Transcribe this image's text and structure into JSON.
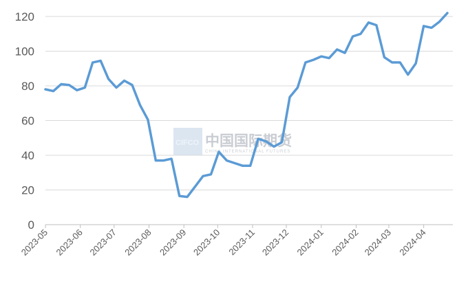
{
  "watermark": {
    "logo": "CIFCO",
    "name": "中国国际期货",
    "tagline": "CHINA INTERNATIONAL FUTURES"
  },
  "chart_data": {
    "type": "line",
    "title": "",
    "xlabel": "",
    "ylabel": "",
    "ylim": [
      0,
      120
    ],
    "yticks": [
      0,
      20,
      40,
      60,
      80,
      100,
      120
    ],
    "grid": "horizontal",
    "line_color": "#5b9bd5",
    "xticks": [
      "2023-05",
      "2023-06",
      "2023-07",
      "2023-08",
      "2023-09",
      "2023-10",
      "2023-11",
      "2023-12",
      "2024-01",
      "2024-02",
      "2024-03",
      "2024-04"
    ],
    "series": [
      {
        "name": "",
        "x": [
          "2023-05-01",
          "2023-05-08",
          "2023-05-15",
          "2023-05-22",
          "2023-05-29",
          "2023-06-05",
          "2023-06-12",
          "2023-06-19",
          "2023-06-26",
          "2023-07-03",
          "2023-07-10",
          "2023-07-17",
          "2023-07-24",
          "2023-07-31",
          "2023-08-07",
          "2023-08-14",
          "2023-08-21",
          "2023-08-28",
          "2023-09-04",
          "2023-09-11",
          "2023-09-18",
          "2023-09-25",
          "2023-10-02",
          "2023-10-09",
          "2023-10-16",
          "2023-10-23",
          "2023-10-30",
          "2023-11-06",
          "2023-11-13",
          "2023-11-20",
          "2023-11-27",
          "2023-12-04",
          "2023-12-11",
          "2023-12-18",
          "2023-12-25",
          "2024-01-01",
          "2024-01-08",
          "2024-01-15",
          "2024-01-22",
          "2024-01-29",
          "2024-02-05",
          "2024-02-12",
          "2024-02-19",
          "2024-02-26",
          "2024-03-04",
          "2024-03-11",
          "2024-03-18",
          "2024-03-25",
          "2024-04-01",
          "2024-04-08",
          "2024-04-15",
          "2024-04-22"
        ],
        "values": [
          78,
          77,
          81,
          80.5,
          77.5,
          79,
          93.5,
          94.5,
          84,
          79,
          83,
          80.5,
          69,
          60.5,
          37,
          37,
          38,
          16.5,
          16,
          22,
          28,
          29,
          42,
          37,
          35.5,
          34,
          34,
          49.5,
          48,
          45,
          47.5,
          73.5,
          79,
          93.5,
          95,
          97,
          96,
          101,
          99,
          108.5,
          110,
          116.5,
          115,
          96.5,
          93.5,
          93.5,
          86.5,
          93,
          114.5,
          113.5,
          117,
          122
        ]
      }
    ]
  }
}
